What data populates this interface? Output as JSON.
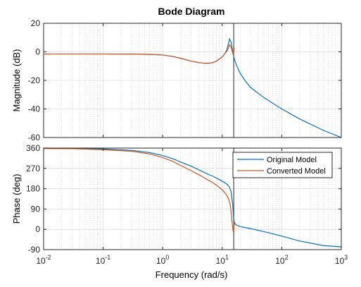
{
  "chart_data": {
    "type": "line",
    "title": "Bode Diagram",
    "xlabel": "Frequency  (rad/s)",
    "x_scale": "log",
    "xlim": [
      0.01,
      1000
    ],
    "x_ticks": [
      {
        "base": "10",
        "exp": "-2",
        "value": 0.01
      },
      {
        "base": "10",
        "exp": "-1",
        "value": 0.1
      },
      {
        "base": "10",
        "exp": "0",
        "value": 1
      },
      {
        "base": "10",
        "exp": "1",
        "value": 10
      },
      {
        "base": "10",
        "exp": "2",
        "value": 100
      },
      {
        "base": "10",
        "exp": "3",
        "value": 1000
      }
    ],
    "grid": true,
    "cursor_frequency": 15.6,
    "legend": {
      "placement": "upper-right of phase panel",
      "entries": [
        "Original Model",
        "Converted Model"
      ]
    },
    "series_colors": {
      "Original Model": "#0072BD",
      "Converted Model": "#D95319"
    },
    "panels": [
      {
        "ylabel": "Magnitude (dB)",
        "ylim": [
          -60,
          20
        ],
        "yticks": [
          20,
          0,
          -20,
          -40,
          -60
        ],
        "series": [
          {
            "name": "Original Model",
            "x": [
              0.01,
              0.03,
              0.1,
              0.3,
              0.6,
              1,
              1.5,
              2,
              3,
              4,
              5,
              6,
              7,
              8,
              9,
              10,
              11,
              12,
              12.7,
              13.3,
              14,
              14.7,
              15.3,
              16,
              17,
              20,
              25,
              30,
              50,
              100,
              200,
              500,
              1000
            ],
            "y": [
              -1.5,
              -1.5,
              -1.5,
              -1.6,
              -1.8,
              -2.2,
              -3.3,
              -4.5,
              -6.5,
              -7.5,
              -8.0,
              -8.0,
              -7.5,
              -6.5,
              -5.0,
              -3.5,
              -1.5,
              1.5,
              5.5,
              9.0,
              7.0,
              2.5,
              -1.5,
              -5.0,
              -8.5,
              -15.0,
              -21.0,
              -25.0,
              -32.0,
              -40.0,
              -47.0,
              -55.0,
              -60.0
            ]
          },
          {
            "name": "Converted Model",
            "x": [
              0.01,
              0.03,
              0.1,
              0.3,
              0.6,
              1,
              1.5,
              2,
              3,
              4,
              5,
              6,
              7,
              8,
              9,
              10,
              11,
              12,
              12.7,
              13.3,
              14,
              14.7,
              15.3,
              16
            ],
            "y": [
              -1.5,
              -1.5,
              -1.5,
              -1.6,
              -1.8,
              -2.2,
              -3.3,
              -4.5,
              -6.5,
              -7.5,
              -8.0,
              -8.0,
              -7.5,
              -6.5,
              -5.0,
              -3.5,
              -1.5,
              0.5,
              2.8,
              5.0,
              3.5,
              0.5,
              -2.0,
              2.5
            ]
          }
        ]
      },
      {
        "ylabel": "Phase (deg)",
        "ylim": [
          -90,
          360
        ],
        "yticks": [
          360,
          270,
          180,
          90,
          0,
          -90
        ],
        "series": [
          {
            "name": "Original Model",
            "x": [
              0.01,
              0.03,
              0.1,
              0.3,
              0.6,
              1,
              1.5,
              2,
              3,
              4,
              5,
              6,
              7,
              8,
              9,
              10,
              11,
              12,
              13,
              14,
              15,
              15.5,
              16,
              17,
              20,
              30,
              50,
              100,
              200,
              500,
              1000
            ],
            "y": [
              360,
              359,
              356,
              350,
              340,
              327,
              312,
              298,
              280,
              264,
              252,
              242,
              235,
              227,
              220,
              213,
              207,
              200,
              190,
              170,
              110,
              50,
              30,
              20,
              12,
              3,
              -10,
              -30,
              -52,
              -72,
              -78
            ]
          },
          {
            "name": "Converted Model",
            "x": [
              0.01,
              0.03,
              0.1,
              0.3,
              0.6,
              1,
              1.5,
              2,
              3,
              4,
              5,
              6,
              7,
              8,
              9,
              10,
              11,
              12,
              13,
              13.8,
              14.3,
              14.8,
              15.2,
              15.5,
              16
            ],
            "y": [
              358,
              357,
              353,
              346,
              334,
              318,
              300,
              283,
              260,
              243,
              228,
              216,
              206,
              196,
              185,
              175,
              163,
              150,
              130,
              100,
              60,
              20,
              -5,
              -15,
              30
            ]
          }
        ]
      }
    ]
  }
}
